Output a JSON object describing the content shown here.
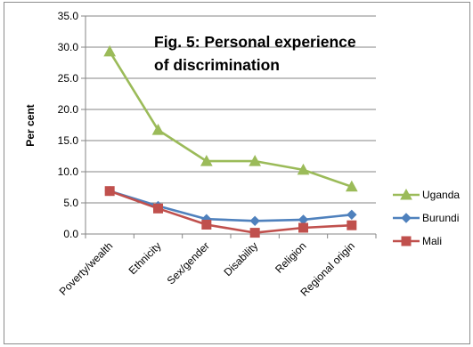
{
  "chart_data": {
    "type": "line",
    "title_lines": [
      "Fig. 5: Personal experience",
      "of discrimination"
    ],
    "xlabel": "",
    "ylabel": "Per cent",
    "ylim": [
      0,
      35
    ],
    "yticks": [
      "0.0",
      "5.0",
      "10.0",
      "15.0",
      "20.0",
      "25.0",
      "30.0",
      "35.0"
    ],
    "grid": true,
    "legend_position": "right",
    "categories": [
      "Poverty/wealth",
      "Ethnicity",
      "Sex/gender",
      "Disability",
      "Religion",
      "Regional origin"
    ],
    "series": [
      {
        "name": "Uganda",
        "color": "#9bbb59",
        "marker": "triangle",
        "values": [
          29.3,
          16.7,
          11.7,
          11.7,
          10.3,
          7.6
        ]
      },
      {
        "name": "Burundi",
        "color": "#4f81bd",
        "marker": "diamond",
        "values": [
          6.9,
          4.5,
          2.4,
          2.1,
          2.3,
          3.1
        ]
      },
      {
        "name": "Mali",
        "color": "#c0504d",
        "marker": "square",
        "values": [
          6.9,
          4.1,
          1.5,
          0.2,
          1.0,
          1.4
        ]
      }
    ]
  }
}
